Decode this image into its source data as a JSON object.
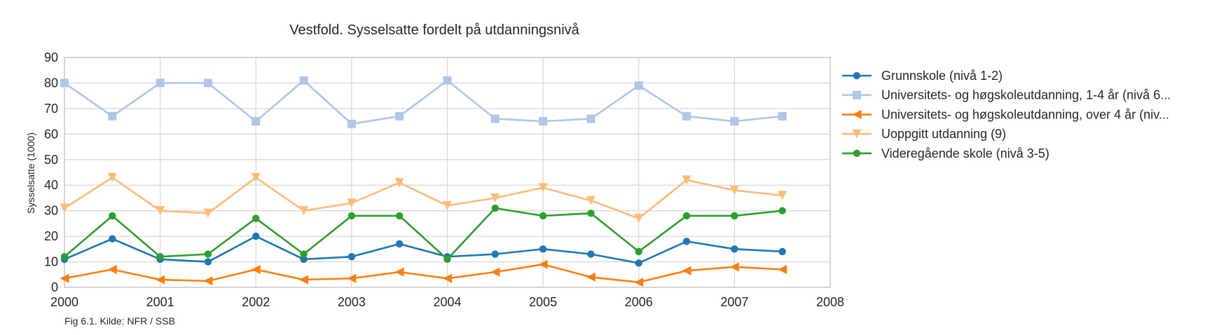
{
  "chart_data": {
    "type": "line",
    "title": "Vestfold. Sysselsatte fordelt på utdanningsnivå",
    "xlabel": "",
    "ylabel": "Sysselsatte (1000)",
    "caption": "Fig 6.1. Kilde: NFR / SSB",
    "xlim": [
      2000,
      2008
    ],
    "ylim": [
      0,
      90
    ],
    "x_ticks": [
      2000,
      2001,
      2002,
      2003,
      2004,
      2005,
      2006,
      2007,
      2008
    ],
    "y_ticks": [
      0,
      10,
      20,
      30,
      40,
      50,
      60,
      70,
      80,
      90
    ],
    "grid": true,
    "legend_position": "right",
    "x": [
      2000,
      2000.5,
      2001,
      2001.5,
      2002,
      2002.5,
      2003,
      2003.5,
      2004,
      2004.5,
      2005,
      2005.5,
      2006,
      2006.5,
      2007,
      2007.5
    ],
    "series": [
      {
        "name": "Grunnskole (nivå 1-2)",
        "color": "#1f77b4",
        "marker": "circle",
        "values": [
          11,
          19,
          11,
          10,
          20,
          11,
          12,
          17,
          12,
          13,
          15,
          13,
          9.5,
          18,
          15,
          14
        ]
      },
      {
        "name": "Universitets- og høgskoleutdanning, 1-4 år (nivå 6...",
        "color": "#aec7e8",
        "marker": "square",
        "values": [
          80,
          67,
          80,
          80,
          65,
          81,
          64,
          67,
          81,
          66,
          65,
          66,
          79,
          67,
          65,
          67
        ]
      },
      {
        "name": "Universitets- og høgskoleutdanning, over 4 år (niv...",
        "color": "#ff7f0e",
        "marker": "triangle-left",
        "values": [
          3.5,
          7,
          3,
          2.5,
          7,
          3,
          3.5,
          6,
          3.5,
          6,
          9,
          4,
          2,
          6.5,
          8,
          7
        ]
      },
      {
        "name": "Uoppgitt utdanning (9)",
        "color": "#ffbb78",
        "marker": "triangle-down",
        "values": [
          31,
          43,
          30,
          29,
          43,
          30,
          33,
          41,
          32,
          35,
          39,
          34,
          27,
          42,
          38,
          36
        ]
      },
      {
        "name": "Videregående skole (nivå 3-5)",
        "color": "#2ca02c",
        "marker": "circle",
        "values": [
          12,
          28,
          12,
          13,
          27,
          13,
          28,
          28,
          11,
          31,
          28,
          29,
          14,
          28,
          28,
          30
        ]
      }
    ]
  }
}
